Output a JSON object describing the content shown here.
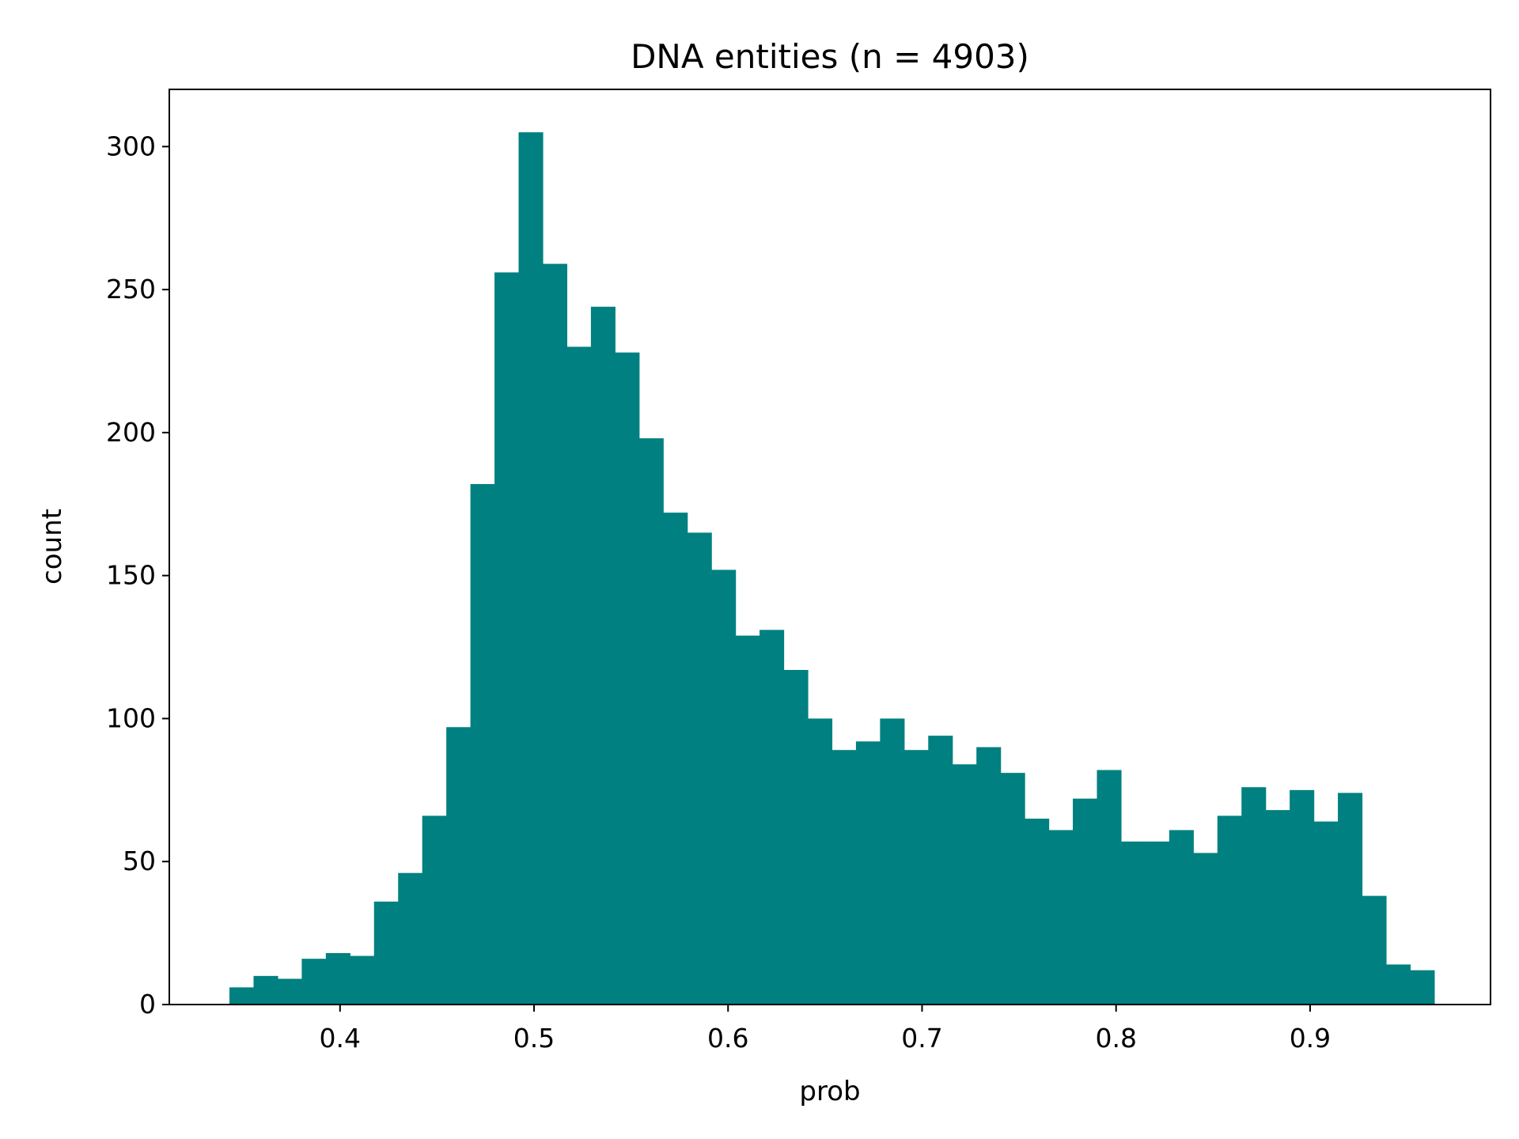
{
  "chart_data": {
    "type": "bar",
    "subtype": "histogram",
    "title": "DNA entities (n = 4903)",
    "xlabel": "prob",
    "ylabel": "count",
    "xlim": [
      0.312,
      0.993
    ],
    "ylim": [
      0,
      320
    ],
    "xticks": [
      {
        "value": 0.4,
        "label": "0.4"
      },
      {
        "value": 0.5,
        "label": "0.5"
      },
      {
        "value": 0.6,
        "label": "0.6"
      },
      {
        "value": 0.7,
        "label": "0.7"
      },
      {
        "value": 0.8,
        "label": "0.8"
      },
      {
        "value": 0.9,
        "label": "0.9"
      }
    ],
    "yticks": [
      {
        "value": 0,
        "label": "0"
      },
      {
        "value": 50,
        "label": "50"
      },
      {
        "value": 100,
        "label": "100"
      },
      {
        "value": 150,
        "label": "150"
      },
      {
        "value": 200,
        "label": "200"
      },
      {
        "value": 250,
        "label": "250"
      },
      {
        "value": 300,
        "label": "300"
      }
    ],
    "bin_start": 0.343,
    "bin_width": 0.01242,
    "values": [
      6,
      10,
      9,
      16,
      18,
      17,
      36,
      46,
      66,
      97,
      182,
      256,
      305,
      259,
      230,
      244,
      228,
      198,
      172,
      165,
      152,
      129,
      131,
      117,
      100,
      89,
      92,
      100,
      89,
      94,
      84,
      90,
      81,
      65,
      61,
      72,
      82,
      57,
      57,
      61,
      53,
      66,
      76,
      68,
      75,
      64,
      74,
      38,
      14,
      12
    ],
    "bar_color": "#008080",
    "grid": false,
    "legend": "none"
  }
}
